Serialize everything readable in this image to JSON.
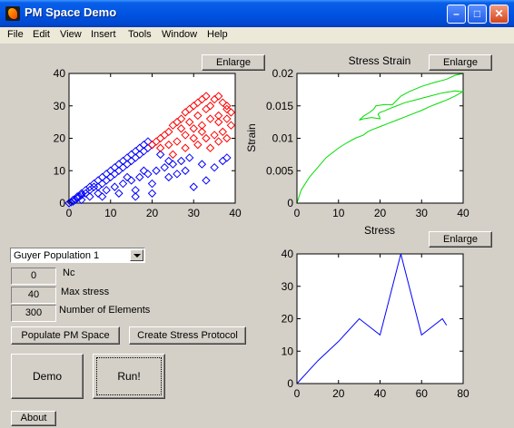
{
  "window": {
    "title": "PM Space Demo"
  },
  "menu": [
    "File",
    "Edit",
    "View",
    "Insert",
    "Tools",
    "Window",
    "Help"
  ],
  "buttons": {
    "enlarge": "Enlarge",
    "populate": "Populate PM Space",
    "stress_protocol": "Create Stress Protocol",
    "demo": "Demo",
    "run": "Run!",
    "about": "About"
  },
  "population_select": {
    "value": "Guyer Population 1"
  },
  "params": [
    {
      "value": "0",
      "label": "Nc"
    },
    {
      "value": "40",
      "label": "Max stress"
    },
    {
      "value": "300",
      "label": "Number of Elements"
    }
  ],
  "chart_data": [
    {
      "type": "scatter",
      "title": "",
      "xlim": [
        0,
        40
      ],
      "ylim": [
        0,
        40
      ],
      "xticks": [
        "0",
        "10",
        "20",
        "30",
        "40"
      ],
      "yticks": [
        "0",
        "10",
        "20",
        "30",
        "40"
      ],
      "marker": "diamond",
      "series": [
        {
          "color": "#0000ff",
          "points": [
            [
              0,
              0
            ],
            [
              0.5,
              0.3
            ],
            [
              1,
              0.5
            ],
            [
              1,
              1
            ],
            [
              1.5,
              1
            ],
            [
              2,
              1.5
            ],
            [
              2,
              2
            ],
            [
              2.5,
              2
            ],
            [
              3,
              2.5
            ],
            [
              3,
              3
            ],
            [
              4,
              3
            ],
            [
              4,
              4
            ],
            [
              5,
              4
            ],
            [
              5,
              5
            ],
            [
              6,
              5
            ],
            [
              6,
              6
            ],
            [
              7,
              5
            ],
            [
              7,
              7
            ],
            [
              8,
              6
            ],
            [
              8,
              8
            ],
            [
              9,
              7
            ],
            [
              9,
              9
            ],
            [
              10,
              8
            ],
            [
              10,
              10
            ],
            [
              11,
              9
            ],
            [
              11,
              11
            ],
            [
              12,
              10
            ],
            [
              12,
              12
            ],
            [
              13,
              11
            ],
            [
              13,
              13
            ],
            [
              14,
              12
            ],
            [
              14,
              14
            ],
            [
              15,
              13
            ],
            [
              15,
              15
            ],
            [
              16,
              14
            ],
            [
              16,
              16
            ],
            [
              17,
              15
            ],
            [
              17,
              17
            ],
            [
              18,
              16
            ],
            [
              18,
              18
            ],
            [
              19,
              17
            ],
            [
              19,
              19
            ],
            [
              20,
              18
            ],
            [
              3,
              1
            ],
            [
              5,
              2
            ],
            [
              7,
              3
            ],
            [
              9,
              4
            ],
            [
              11,
              5
            ],
            [
              13,
              6
            ],
            [
              15,
              7
            ],
            [
              17,
              8
            ],
            [
              19,
              9
            ],
            [
              21,
              10
            ],
            [
              23,
              11
            ],
            [
              25,
              12
            ],
            [
              27,
              13
            ],
            [
              29,
              14
            ],
            [
              8,
              2
            ],
            [
              12,
              3
            ],
            [
              16,
              4
            ],
            [
              20,
              6
            ],
            [
              24,
              8
            ],
            [
              28,
              10
            ],
            [
              32,
              12
            ],
            [
              22,
              15
            ],
            [
              24,
              13
            ],
            [
              26,
              9
            ],
            [
              30,
              5
            ],
            [
              33,
              7
            ],
            [
              35,
              11
            ],
            [
              37,
              13
            ],
            [
              38,
              14
            ],
            [
              16,
              2
            ],
            [
              20,
              3
            ],
            [
              14,
              8
            ],
            [
              18,
              10
            ]
          ]
        },
        {
          "color": "#ff0000",
          "points": [
            [
              20,
              18
            ],
            [
              21,
              19
            ],
            [
              22,
              20
            ],
            [
              23,
              21
            ],
            [
              24,
              22
            ],
            [
              25,
              24
            ],
            [
              26,
              25
            ],
            [
              27,
              26
            ],
            [
              28,
              28
            ],
            [
              29,
              29
            ],
            [
              30,
              30
            ],
            [
              31,
              31
            ],
            [
              32,
              32
            ],
            [
              33,
              33
            ],
            [
              34,
              30
            ],
            [
              35,
              32
            ],
            [
              36,
              33
            ],
            [
              37,
              31
            ],
            [
              38,
              30
            ],
            [
              39,
              28
            ],
            [
              22,
              17
            ],
            [
              24,
              18
            ],
            [
              26,
              19
            ],
            [
              28,
              21
            ],
            [
              30,
              23
            ],
            [
              32,
              24
            ],
            [
              34,
              26
            ],
            [
              36,
              27
            ],
            [
              38,
              29
            ],
            [
              25,
              15
            ],
            [
              28,
              17
            ],
            [
              31,
              18
            ],
            [
              33,
              20
            ],
            [
              35,
              21
            ],
            [
              37,
              22
            ],
            [
              39,
              24
            ],
            [
              27,
              23
            ],
            [
              29,
              25
            ],
            [
              31,
              27
            ],
            [
              33,
              29
            ],
            [
              36,
              25
            ],
            [
              38,
              26
            ],
            [
              30,
              20
            ],
            [
              32,
              22
            ],
            [
              34,
              17
            ],
            [
              36,
              19
            ],
            [
              38,
              20
            ]
          ]
        }
      ]
    },
    {
      "type": "line",
      "title": "Stress Strain",
      "xlabel": "Stress",
      "ylabel": "Strain",
      "xlim": [
        0,
        40
      ],
      "ylim": [
        0,
        0.02
      ],
      "xticks": [
        "0",
        "10",
        "20",
        "30",
        "40"
      ],
      "yticks": [
        "0",
        "0.005",
        "0.01",
        "0.015",
        "0.02"
      ],
      "series": [
        {
          "color": "#00dd00",
          "x": [
            0,
            1,
            2,
            3,
            5,
            7,
            10,
            12,
            14,
            16,
            17,
            18,
            20,
            22,
            24,
            26,
            28,
            30,
            32,
            34,
            36,
            38,
            40,
            38,
            35,
            32,
            29,
            26,
            24,
            22,
            21,
            20,
            19.5,
            19.8,
            20,
            18,
            16,
            15,
            16,
            17.5,
            18.5,
            19,
            21,
            23,
            25,
            27,
            30,
            33,
            36,
            38,
            40
          ],
          "y": [
            0,
            0.002,
            0.003,
            0.004,
            0.0055,
            0.007,
            0.0085,
            0.0093,
            0.01,
            0.0105,
            0.011,
            0.0113,
            0.0118,
            0.0123,
            0.0128,
            0.0133,
            0.0138,
            0.0143,
            0.0149,
            0.0154,
            0.0159,
            0.0165,
            0.0172,
            0.0173,
            0.017,
            0.0165,
            0.016,
            0.0155,
            0.015,
            0.0145,
            0.0142,
            0.014,
            0.0137,
            0.0134,
            0.013,
            0.0132,
            0.013,
            0.0128,
            0.0134,
            0.014,
            0.0145,
            0.015,
            0.0152,
            0.0152,
            0.0165,
            0.0172,
            0.018,
            0.0186,
            0.0191,
            0.0197,
            0.02
          ]
        }
      ]
    },
    {
      "type": "line",
      "title": "",
      "xlim": [
        0,
        80
      ],
      "ylim": [
        0,
        40
      ],
      "xticks": [
        "0",
        "20",
        "40",
        "60",
        "80"
      ],
      "yticks": [
        "0",
        "10",
        "20",
        "30",
        "40"
      ],
      "series": [
        {
          "color": "#0000ff",
          "x": [
            0,
            10,
            20,
            30,
            40,
            50,
            60,
            70,
            72
          ],
          "y": [
            0,
            7,
            13,
            20,
            15,
            40,
            15,
            20,
            18
          ]
        }
      ]
    }
  ]
}
